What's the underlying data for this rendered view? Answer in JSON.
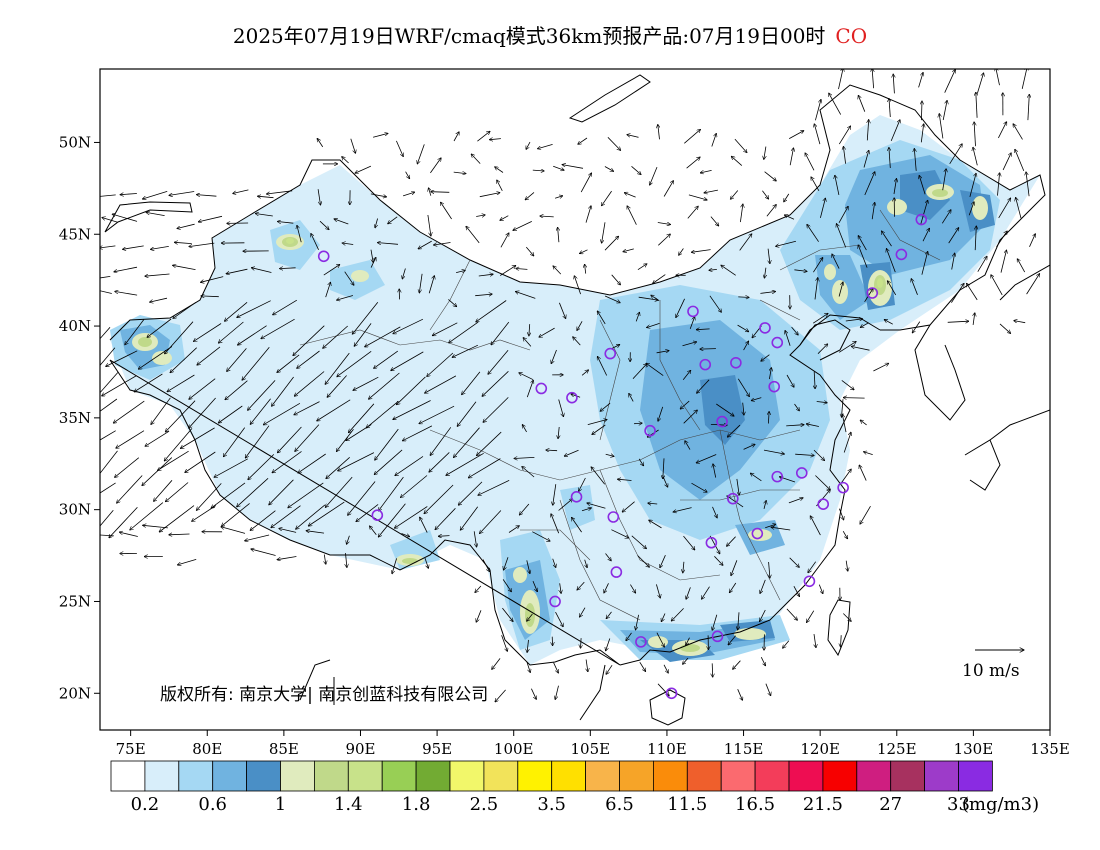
{
  "title": {
    "main": "2025年07月19日WRF/cmaq模式36km预报产品:07月19日00时",
    "species": "CO",
    "species_color": "#e02020"
  },
  "map": {
    "lon_range": [
      73,
      135
    ],
    "lat_range": [
      18,
      54
    ],
    "lon_ticks": [
      "75E",
      "80E",
      "85E",
      "90E",
      "95E",
      "100E",
      "105E",
      "110E",
      "115E",
      "120E",
      "125E",
      "130E",
      "135E"
    ],
    "lat_ticks": [
      "20N",
      "25N",
      "30N",
      "35N",
      "40N",
      "45N",
      "50N"
    ],
    "reference_vector_label": "10 m/s",
    "copyright": "版权所有: 南京大学| 南京创蓝科技有限公司",
    "station_marker_color": "#8a2be2",
    "stations": [
      [
        87.6,
        43.8
      ],
      [
        91.1,
        29.7
      ],
      [
        101.8,
        36.6
      ],
      [
        103.8,
        36.1
      ],
      [
        106.3,
        38.5
      ],
      [
        111.7,
        40.8
      ],
      [
        108.9,
        34.3
      ],
      [
        104.1,
        30.7
      ],
      [
        106.5,
        29.6
      ],
      [
        106.7,
        26.6
      ],
      [
        102.7,
        25.0
      ],
      [
        108.3,
        22.8
      ],
      [
        110.3,
        20.0
      ],
      [
        113.3,
        23.1
      ],
      [
        112.9,
        28.2
      ],
      [
        114.3,
        30.6
      ],
      [
        115.9,
        28.7
      ],
      [
        117.2,
        31.8
      ],
      [
        118.8,
        32.0
      ],
      [
        120.2,
        30.3
      ],
      [
        121.5,
        31.2
      ],
      [
        119.3,
        26.1
      ],
      [
        113.6,
        34.8
      ],
      [
        112.5,
        37.9
      ],
      [
        114.5,
        38.0
      ],
      [
        117.0,
        36.7
      ],
      [
        116.4,
        39.9
      ],
      [
        117.2,
        39.1
      ],
      [
        123.4,
        41.8
      ],
      [
        125.3,
        43.9
      ],
      [
        126.6,
        45.8
      ]
    ]
  },
  "colorbar": {
    "colors": [
      "#ffffff",
      "#d8eefa",
      "#a5d8f3",
      "#70b3e0",
      "#4a8fc6",
      "#e0ebbe",
      "#c0d98a",
      "#c8e28a",
      "#98cf55",
      "#72ab33",
      "#f2f76a",
      "#f2e35a",
      "#fff200",
      "#ffe000",
      "#f8b44a",
      "#f6a428",
      "#fa8c0a",
      "#ef5f2c",
      "#fb6a6f",
      "#f33d5a",
      "#ee0d52",
      "#f70000",
      "#cf1e80",
      "#a7315f",
      "#9d3bc9",
      "#8a2be2"
    ],
    "labels": [
      "0.2",
      "0.6",
      "1",
      "1.4",
      "1.8",
      "2.5",
      "3.5",
      "6.5",
      "11.5",
      "16.5",
      "21.5",
      "27",
      "33"
    ],
    "unit": "(mg/m3)"
  }
}
